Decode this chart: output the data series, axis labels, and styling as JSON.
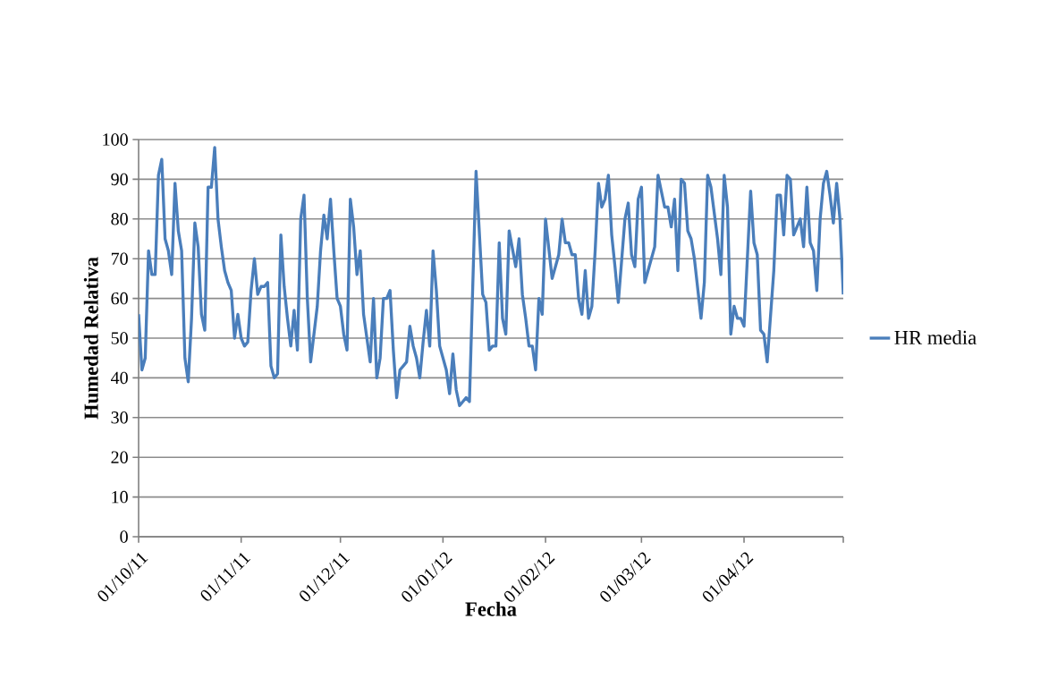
{
  "chart_data": {
    "type": "line",
    "xlabel": "Fecha",
    "ylabel": "Humedad Relativa",
    "x": [
      "2011-10-01",
      "2011-10-02",
      "2011-10-03",
      "2011-10-04",
      "2011-10-05",
      "2011-10-06",
      "2011-10-07",
      "2011-10-08",
      "2011-10-09",
      "2011-10-10",
      "2011-10-11",
      "2011-10-12",
      "2011-10-13",
      "2011-10-14",
      "2011-10-15",
      "2011-10-16",
      "2011-10-17",
      "2011-10-18",
      "2011-10-19",
      "2011-10-20",
      "2011-10-21",
      "2011-10-22",
      "2011-10-23",
      "2011-10-24",
      "2011-10-25",
      "2011-10-26",
      "2011-10-27",
      "2011-10-28",
      "2011-10-29",
      "2011-10-30",
      "2011-10-31",
      "2011-11-01",
      "2011-11-02",
      "2011-11-03",
      "2011-11-04",
      "2011-11-05",
      "2011-11-06",
      "2011-11-07",
      "2011-11-08",
      "2011-11-09",
      "2011-11-10",
      "2011-11-11",
      "2011-11-12",
      "2011-11-13",
      "2011-11-14",
      "2011-11-15",
      "2011-11-16",
      "2011-11-17",
      "2011-11-18",
      "2011-11-19",
      "2011-11-20",
      "2011-11-21",
      "2011-11-22",
      "2011-11-23",
      "2011-11-24",
      "2011-11-25",
      "2011-11-26",
      "2011-11-27",
      "2011-11-28",
      "2011-11-29",
      "2011-11-30",
      "2011-12-01",
      "2011-12-02",
      "2011-12-03",
      "2011-12-04",
      "2011-12-05",
      "2011-12-06",
      "2011-12-07",
      "2011-12-08",
      "2011-12-09",
      "2011-12-10",
      "2011-12-11",
      "2011-12-12",
      "2011-12-13",
      "2011-12-14",
      "2011-12-15",
      "2011-12-16",
      "2011-12-17",
      "2011-12-18",
      "2011-12-19",
      "2011-12-20",
      "2011-12-21",
      "2011-12-22",
      "2011-12-23",
      "2011-12-24",
      "2011-12-25",
      "2011-12-26",
      "2011-12-27",
      "2011-12-28",
      "2011-12-29",
      "2011-12-30",
      "2011-12-31",
      "2012-01-02",
      "2012-01-03",
      "2012-01-04",
      "2012-01-05",
      "2012-01-06",
      "2012-01-07",
      "2012-01-08",
      "2012-01-09",
      "2012-01-11",
      "2012-01-13",
      "2012-01-14",
      "2012-01-15",
      "2012-01-16",
      "2012-01-17",
      "2012-01-18",
      "2012-01-19",
      "2012-01-20",
      "2012-01-21",
      "2012-01-23",
      "2012-01-24",
      "2012-01-25",
      "2012-01-26",
      "2012-01-27",
      "2012-01-28",
      "2012-01-29",
      "2012-01-30",
      "2012-01-31",
      "2012-02-01",
      "2012-02-03",
      "2012-02-05",
      "2012-02-06",
      "2012-02-07",
      "2012-02-08",
      "2012-02-09",
      "2012-02-10",
      "2012-02-11",
      "2012-02-12",
      "2012-02-13",
      "2012-02-14",
      "2012-02-15",
      "2012-02-16",
      "2012-02-17",
      "2012-02-18",
      "2012-02-19",
      "2012-02-20",
      "2012-02-21",
      "2012-02-22",
      "2012-02-23",
      "2012-02-25",
      "2012-02-26",
      "2012-02-27",
      "2012-02-28",
      "2012-02-29",
      "2012-03-01",
      "2012-03-02",
      "2012-03-03",
      "2012-03-05",
      "2012-03-06",
      "2012-03-07",
      "2012-03-08",
      "2012-03-09",
      "2012-03-10",
      "2012-03-11",
      "2012-03-12",
      "2012-03-13",
      "2012-03-14",
      "2012-03-15",
      "2012-03-16",
      "2012-03-17",
      "2012-03-19",
      "2012-03-20",
      "2012-03-21",
      "2012-03-22",
      "2012-03-24",
      "2012-03-25",
      "2012-03-26",
      "2012-03-27",
      "2012-03-28",
      "2012-03-29",
      "2012-03-30",
      "2012-03-31",
      "2012-04-01",
      "2012-04-03",
      "2012-04-04",
      "2012-04-05",
      "2012-04-06",
      "2012-04-07",
      "2012-04-08",
      "2012-04-10",
      "2012-04-11",
      "2012-04-12",
      "2012-04-13",
      "2012-04-14",
      "2012-04-15",
      "2012-04-16",
      "2012-04-18",
      "2012-04-19",
      "2012-04-20",
      "2012-04-21",
      "2012-04-22",
      "2012-04-23",
      "2012-04-24",
      "2012-04-25",
      "2012-04-26",
      "2012-04-27",
      "2012-04-28",
      "2012-04-29",
      "2012-04-30",
      "2012-05-01"
    ],
    "series": [
      {
        "name": "HR media",
        "color": "#4a7ebb",
        "values": [
          56,
          42,
          45,
          72,
          66,
          66,
          91,
          95,
          75,
          72,
          66,
          89,
          77,
          72,
          45,
          39,
          55,
          79,
          73,
          56,
          52,
          88,
          88,
          98,
          80,
          73,
          67,
          64,
          62,
          50,
          56,
          50,
          48,
          49,
          62,
          70,
          61,
          63,
          63,
          64,
          43,
          40,
          41,
          76,
          63,
          55,
          48,
          57,
          47,
          80,
          86,
          60,
          44,
          51,
          58,
          72,
          81,
          75,
          85,
          72,
          60,
          58,
          51,
          47,
          85,
          78,
          66,
          72,
          56,
          50,
          44,
          60,
          40,
          45,
          60,
          60,
          62,
          47,
          35,
          42,
          43,
          44,
          53,
          48,
          45,
          40,
          49,
          57,
          48,
          72,
          62,
          48,
          42,
          36,
          46,
          37,
          33,
          34,
          35,
          34,
          92,
          61,
          59,
          47,
          48,
          48,
          74,
          55,
          51,
          77,
          68,
          75,
          61,
          55,
          48,
          48,
          42,
          60,
          56,
          80,
          65,
          71,
          80,
          74,
          74,
          71,
          71,
          60,
          56,
          67,
          55,
          58,
          72,
          89,
          83,
          85,
          91,
          76,
          68,
          59,
          80,
          84,
          71,
          68,
          85,
          88,
          64,
          67,
          73,
          91,
          87,
          83,
          83,
          78,
          85,
          67,
          90,
          89,
          77,
          75,
          70,
          55,
          64,
          91,
          88,
          75,
          66,
          91,
          83,
          51,
          58,
          55,
          55,
          53,
          87,
          74,
          71,
          52,
          51,
          44,
          67,
          86,
          86,
          76,
          91,
          90,
          76,
          80,
          73,
          88,
          74,
          72,
          62,
          80,
          89,
          92,
          86,
          79,
          89,
          80,
          61
        ]
      }
    ],
    "xlim": [
      "2011-10-01",
      "2012-05-01"
    ],
    "xticks": [
      {
        "value": "2011-10-01",
        "label": "01/10/11"
      },
      {
        "value": "2011-11-01",
        "label": "01/11/11"
      },
      {
        "value": "2011-12-01",
        "label": "01/12/11"
      },
      {
        "value": "2012-01-01",
        "label": "01/01/12"
      },
      {
        "value": "2012-02-01",
        "label": "01/02/12"
      },
      {
        "value": "2012-03-01",
        "label": "01/03/12"
      },
      {
        "value": "2012-04-01",
        "label": "01/04/12"
      },
      {
        "value": "2012-05-01",
        "label": null
      }
    ],
    "ylim": [
      0,
      100
    ],
    "yticks": [
      0,
      10,
      20,
      30,
      40,
      50,
      60,
      70,
      80,
      90,
      100
    ],
    "grid": "y",
    "legend": "right",
    "marker": "none",
    "line_style": "solid"
  }
}
